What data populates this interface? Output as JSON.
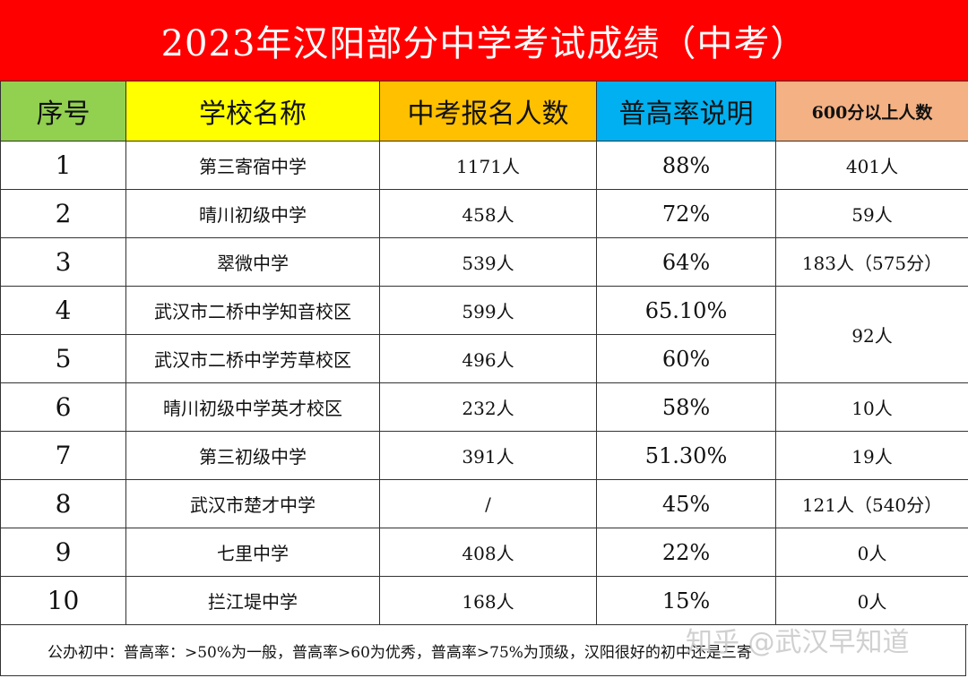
{
  "title": "2023年汉阳部分中学考试成绩（中考）",
  "colors": {
    "title_bg": "#ff0000",
    "col_index": "#92d050",
    "col_school": "#ffff00",
    "col_applicants": "#ffc000",
    "col_rate": "#00b0f0",
    "col_600": "#f4b183"
  },
  "headers": [
    "序号",
    "学校名称",
    "中考报名人数",
    "普高率说明",
    "600分以上人数"
  ],
  "rows": [
    {
      "index": "1",
      "school": "第三寄宿中学",
      "applicants": "1171人",
      "rate": "88%",
      "above600": "401人"
    },
    {
      "index": "2",
      "school": "晴川初级中学",
      "applicants": "458人",
      "rate": "72%",
      "above600": "59人"
    },
    {
      "index": "3",
      "school": "翠微中学",
      "applicants": "539人",
      "rate": "64%",
      "above600": "183人（575分）"
    },
    {
      "index": "4",
      "school": "武汉市二桥中学知音校区",
      "applicants": "599人",
      "rate": "65.10%",
      "above600": "92人"
    },
    {
      "index": "5",
      "school": "武汉市二桥中学芳草校区",
      "applicants": "496人",
      "rate": "60%"
    },
    {
      "index": "6",
      "school": "晴川初级中学英才校区",
      "applicants": "232人",
      "rate": "58%",
      "above600": "10人"
    },
    {
      "index": "7",
      "school": "第三初级中学",
      "applicants": "391人",
      "rate": "51.30%",
      "above600": "19人"
    },
    {
      "index": "8",
      "school": "武汉市楚才中学",
      "applicants": "/",
      "rate": "45%",
      "above600": "121人（540分）"
    },
    {
      "index": "9",
      "school": "七里中学",
      "applicants": "408人",
      "rate": "22%",
      "above600": "0人"
    },
    {
      "index": "10",
      "school": "拦江堤中学",
      "applicants": "168人",
      "rate": "15%",
      "above600": "0人"
    }
  ],
  "footer": "公办初中：普高率：>50%为一般，普高率>60为优秀，普高率>75%为顶级，汉阳很好的初中还是三寄",
  "watermark": "知乎 @武汉早知道"
}
